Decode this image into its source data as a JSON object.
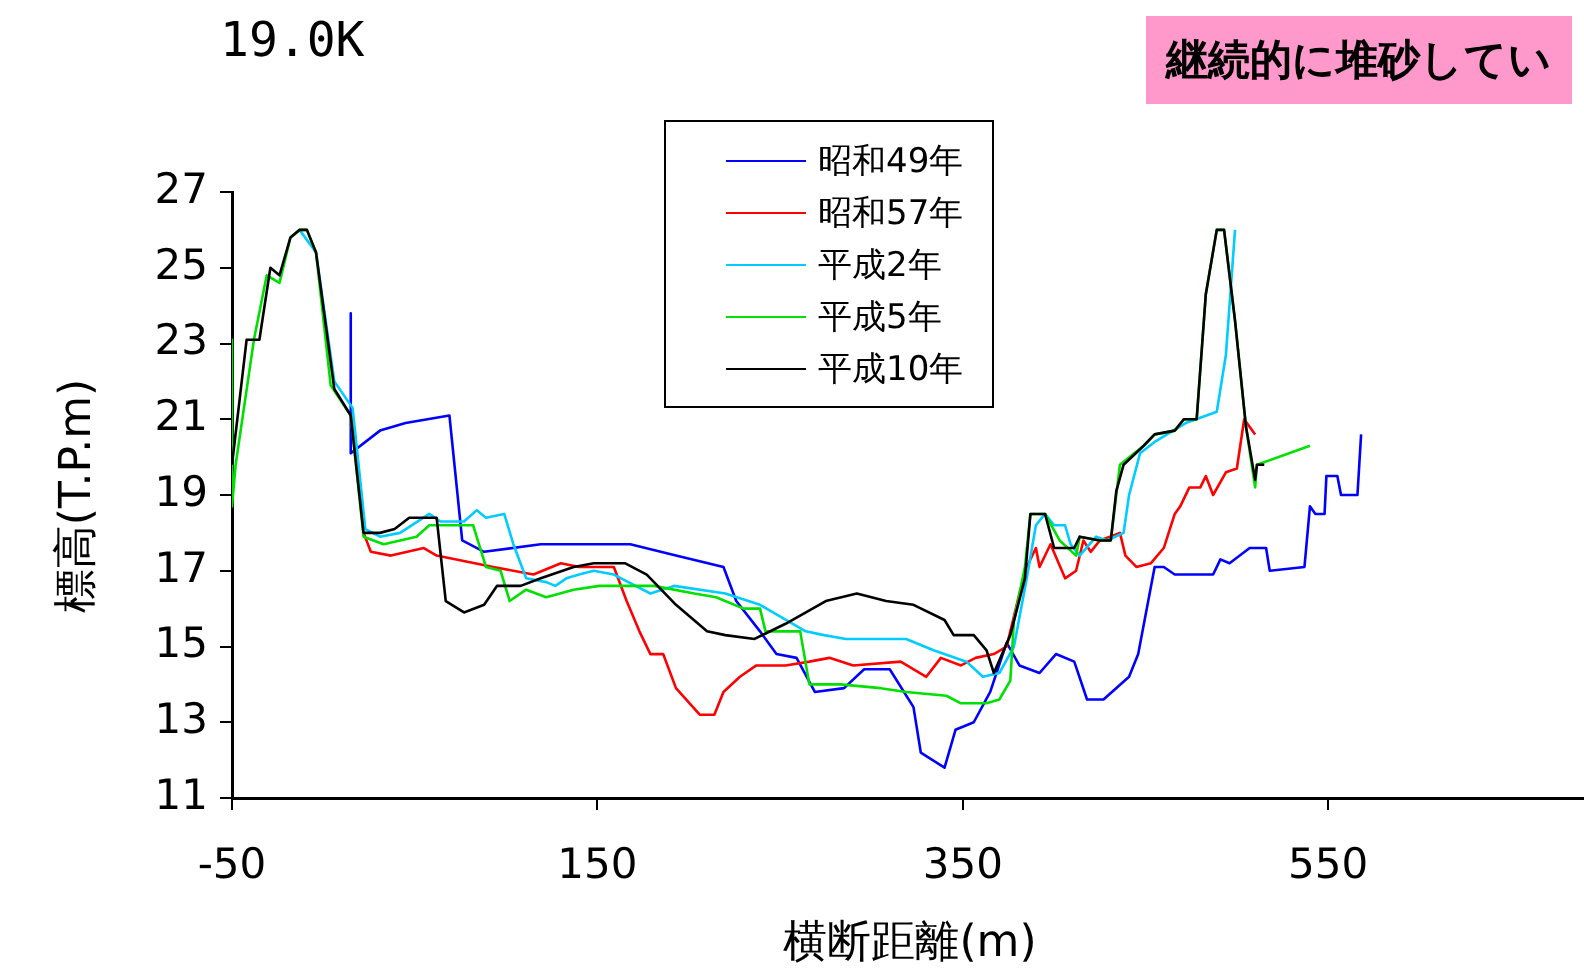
{
  "chart_data": {
    "type": "line",
    "title": "19.0K",
    "xlabel": "横断距離(m)",
    "ylabel": "標高(T.P.m)",
    "annotations": [
      "継続的に堆砂してい"
    ],
    "xlim": [
      -50,
      690
    ],
    "xticks": [
      -50,
      150,
      350,
      550
    ],
    "ylim": [
      11,
      27
    ],
    "yticks": [
      11,
      13,
      15,
      17,
      19,
      21,
      23,
      25,
      27
    ],
    "grid": false,
    "legend": "top",
    "marker": "none",
    "line_style": "solid",
    "series": [
      {
        "name": "昭和49年",
        "color": "#0000ff",
        "x": [
          15,
          15,
          31,
          45,
          69,
          76,
          88,
          119,
          151,
          168,
          193,
          219,
          226,
          239,
          248,
          259,
          269,
          285,
          296,
          310,
          323,
          327,
          340,
          346,
          356,
          365,
          374,
          381,
          392,
          401,
          411,
          418,
          427,
          441,
          446,
          455,
          460,
          466,
          487,
          491,
          496,
          507,
          516,
          518,
          537,
          540,
          543,
          548,
          549,
          555,
          557,
          566,
          568
        ],
        "values": [
          23.8,
          20.1,
          20.7,
          20.9,
          21.1,
          17.8,
          17.5,
          17.7,
          17.7,
          17.7,
          17.4,
          17.1,
          16.2,
          15.4,
          14.8,
          14.7,
          13.8,
          13.9,
          14.4,
          14.4,
          13.4,
          12.2,
          11.8,
          12.8,
          13.0,
          13.8,
          15.1,
          14.5,
          14.3,
          14.8,
          14.6,
          13.6,
          13.6,
          14.2,
          14.8,
          17.1,
          17.1,
          16.9,
          16.9,
          17.3,
          17.2,
          17.6,
          17.6,
          17.0,
          17.1,
          18.7,
          18.5,
          18.5,
          19.5,
          19.5,
          19.0,
          19.0,
          20.6
        ]
      },
      {
        "name": "昭和57年",
        "color": "#ff0000",
        "x": [
          22,
          26,
          37,
          55,
          62,
          93,
          115,
          130,
          140,
          159,
          166,
          173,
          179,
          186,
          193,
          206,
          214,
          219,
          228,
          237,
          253,
          266,
          277,
          290,
          316,
          330,
          338,
          349,
          357,
          367,
          374,
          381,
          385,
          390,
          392,
          398,
          406,
          412,
          416,
          420,
          425,
          436,
          439,
          445,
          453,
          460,
          466,
          469,
          474,
          480,
          483,
          487,
          494,
          500,
          504,
          510
        ],
        "values": [
          18.0,
          17.5,
          17.4,
          17.6,
          17.4,
          17.1,
          16.9,
          17.2,
          17.1,
          17.1,
          16.2,
          15.4,
          14.8,
          14.8,
          13.9,
          13.2,
          13.2,
          13.8,
          14.2,
          14.5,
          14.5,
          14.6,
          14.7,
          14.5,
          14.6,
          14.2,
          14.7,
          14.5,
          14.7,
          14.8,
          15.0,
          16.4,
          17.1,
          17.6,
          17.1,
          17.7,
          16.8,
          17.0,
          17.8,
          17.5,
          17.8,
          18.0,
          17.4,
          17.1,
          17.2,
          17.6,
          18.5,
          18.7,
          19.2,
          19.2,
          19.5,
          19.0,
          19.6,
          19.7,
          21.0,
          20.6
        ]
      },
      {
        "name": "平成2年",
        "color": "#00ccff",
        "x": [
          -13,
          -4,
          6,
          16,
          23,
          31,
          42,
          58,
          64,
          77,
          84,
          89,
          99,
          104,
          111,
          122,
          127,
          133,
          140,
          148,
          159,
          179,
          192,
          220,
          239,
          264,
          274,
          286,
          319,
          334,
          352,
          361,
          370,
          378,
          385,
          390,
          395,
          400,
          406,
          409,
          414,
          423,
          429,
          438,
          441,
          447,
          455,
          472,
          489,
          494,
          499
        ],
        "values": [
          26.0,
          25.4,
          22.0,
          21.3,
          18.1,
          17.9,
          18.0,
          18.5,
          18.3,
          18.3,
          18.6,
          18.4,
          18.5,
          17.7,
          16.8,
          16.7,
          16.6,
          16.8,
          16.9,
          17.0,
          16.9,
          16.4,
          16.6,
          16.4,
          16.1,
          15.4,
          15.3,
          15.2,
          15.2,
          14.9,
          14.6,
          14.2,
          14.3,
          15.0,
          16.8,
          18.2,
          18.5,
          18.2,
          18.2,
          17.7,
          17.4,
          17.9,
          17.8,
          18.0,
          19.0,
          20.1,
          20.4,
          20.9,
          21.2,
          22.7,
          26.0
        ]
      },
      {
        "name": "平成5年",
        "color": "#00e000",
        "x": [
          -50,
          -50,
          -48,
          -38,
          -31,
          -24,
          -18,
          -13,
          -9,
          -4,
          4,
          15,
          22,
          33,
          42,
          51,
          58,
          82,
          89,
          97,
          102,
          111,
          122,
          137,
          151,
          181,
          203,
          215,
          230,
          239,
          242,
          261,
          266,
          283,
          305,
          319,
          341,
          349,
          363,
          370,
          376,
          378,
          384,
          387,
          395,
          403,
          412,
          414,
          425,
          431,
          436,
          449,
          455,
          466,
          471,
          478,
          483,
          489,
          493,
          499,
          505,
          510,
          511,
          540
        ],
        "values": [
          23.1,
          18.7,
          19.8,
          23.1,
          24.8,
          24.6,
          25.8,
          26.0,
          26.0,
          25.4,
          21.9,
          21.1,
          17.9,
          17.7,
          17.8,
          17.9,
          18.2,
          18.2,
          17.1,
          17.0,
          16.2,
          16.5,
          16.3,
          16.5,
          16.6,
          16.6,
          16.4,
          16.3,
          16.0,
          16.0,
          15.4,
          15.4,
          14.0,
          14.0,
          13.9,
          13.8,
          13.7,
          13.5,
          13.5,
          13.6,
          14.1,
          15.7,
          17.1,
          18.5,
          18.5,
          17.8,
          17.4,
          17.9,
          17.8,
          17.8,
          19.8,
          20.3,
          20.6,
          20.7,
          21.0,
          21.0,
          24.3,
          26.0,
          26.0,
          23.6,
          20.8,
          19.2,
          19.8,
          20.3
        ]
      },
      {
        "name": "平成10年",
        "color": "#000000",
        "x": [
          -50,
          -42,
          -35,
          -29,
          -24,
          -18,
          -13,
          -9,
          -4,
          6,
          15,
          22,
          31,
          39,
          47,
          62,
          67,
          77,
          88,
          95,
          108,
          119,
          137,
          148,
          165,
          177,
          193,
          210,
          220,
          236,
          253,
          275,
          292,
          308,
          323,
          340,
          345,
          356,
          363,
          367,
          376,
          384,
          387,
          395,
          400,
          411,
          414,
          425,
          431,
          434,
          438,
          449,
          455,
          466,
          471,
          478,
          483,
          489,
          493,
          499,
          505,
          510,
          511,
          515
        ],
        "values": [
          19.8,
          23.1,
          23.1,
          25.0,
          24.8,
          25.8,
          26.0,
          26.0,
          25.4,
          21.8,
          21.1,
          18.0,
          18.0,
          18.1,
          18.4,
          18.4,
          16.2,
          15.9,
          16.1,
          16.6,
          16.6,
          16.8,
          17.1,
          17.2,
          17.2,
          16.9,
          16.1,
          15.4,
          15.3,
          15.2,
          15.6,
          16.2,
          16.4,
          16.2,
          16.1,
          15.7,
          15.3,
          15.3,
          14.9,
          14.3,
          15.3,
          16.8,
          18.5,
          18.5,
          17.6,
          17.6,
          17.9,
          17.8,
          17.8,
          19.1,
          19.8,
          20.3,
          20.6,
          20.7,
          21.0,
          21.0,
          24.3,
          26.0,
          26.0,
          23.6,
          20.8,
          19.4,
          19.8,
          19.8
        ]
      }
    ]
  }
}
